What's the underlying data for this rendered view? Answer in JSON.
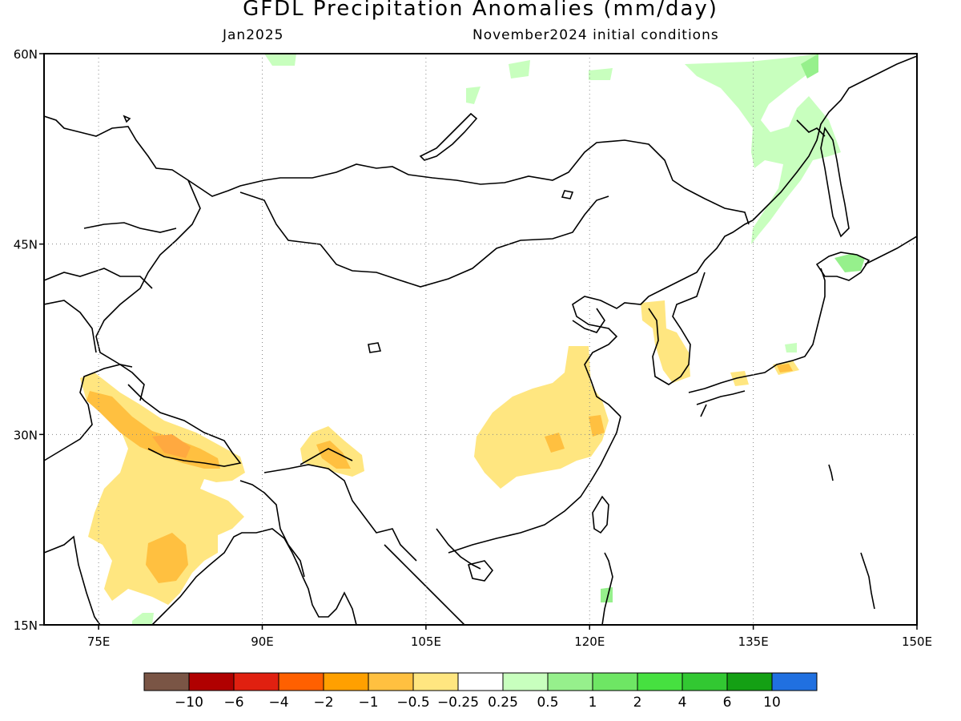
{
  "title": "GFDL Precipitation Anomalies (mm/day)",
  "valid_month": "Jan2025",
  "initial_conditions": "November2024 initial conditions",
  "map": {
    "lon_range": [
      70,
      150
    ],
    "lat_range": [
      15,
      60
    ],
    "lat_ticks": [
      {
        "value": 60,
        "label": "60N"
      },
      {
        "value": 45,
        "label": "45N"
      },
      {
        "value": 30,
        "label": "30N"
      },
      {
        "value": 15,
        "label": "15N"
      }
    ],
    "lon_ticks": [
      {
        "value": 75,
        "label": "75E"
      },
      {
        "value": 90,
        "label": "90E"
      },
      {
        "value": 105,
        "label": "105E"
      },
      {
        "value": 120,
        "label": "120E"
      },
      {
        "value": 135,
        "label": "135E"
      },
      {
        "value": 150,
        "label": "150E"
      }
    ],
    "grid": "dotted"
  },
  "colorbar": {
    "colors": [
      "#7a5545",
      "#b00000",
      "#e02010",
      "#ff6000",
      "#ffa000",
      "#ffc040",
      "#ffe680",
      "#ffffff",
      "#c8ffbe",
      "#96f08c",
      "#6ee664",
      "#46e040",
      "#32c832",
      "#14a014",
      "#2070e0"
    ],
    "labels": [
      "−10",
      "−6",
      "−4",
      "−2",
      "−1",
      "−0.5",
      "−0.25",
      "0.25",
      "0.5",
      "1",
      "2",
      "4",
      "6",
      "10"
    ]
  },
  "anomaly_regions": [
    {
      "name": "north-india-dry",
      "level": "light-dry",
      "color": "#ffe680"
    },
    {
      "name": "himalaya-dry",
      "level": "moderate-dry",
      "color": "#ffc040"
    },
    {
      "name": "central-india-dry-core",
      "level": "moderate-dry",
      "color": "#ffc040"
    },
    {
      "name": "eastern-himalaya-dry",
      "level": "light-dry",
      "color": "#ffe680"
    },
    {
      "name": "eastern-china-dry",
      "level": "light-dry",
      "color": "#ffe680"
    },
    {
      "name": "korea-dry",
      "level": "light-dry",
      "color": "#ffe680"
    },
    {
      "name": "japan-dry",
      "level": "light-dry",
      "color": "#ffe680"
    },
    {
      "name": "far-east-wet",
      "level": "light-wet",
      "color": "#c8ffbe"
    },
    {
      "name": "hokkaido-wet",
      "level": "light-wet",
      "color": "#96f08c"
    },
    {
      "name": "taiwan-wet",
      "level": "light-wet",
      "color": "#96f08c"
    }
  ]
}
